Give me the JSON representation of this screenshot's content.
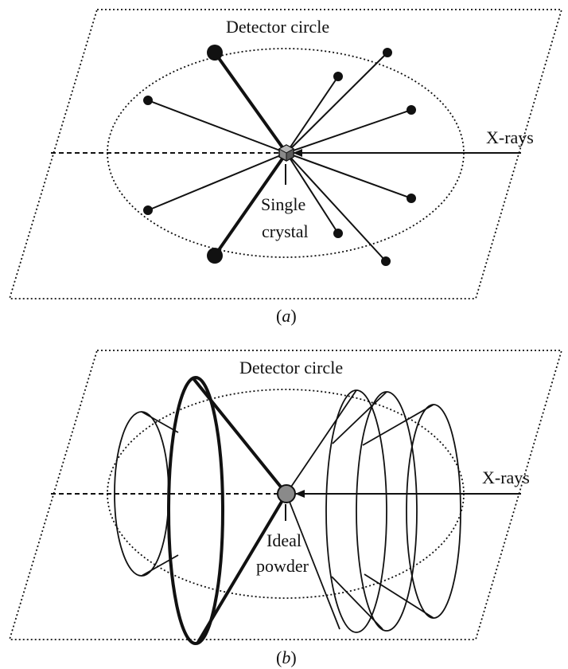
{
  "panel_a": {
    "detector_label": "Detector circle",
    "xray_label": "X-rays",
    "crystal_label_line1": "Single",
    "crystal_label_line2": "crystal",
    "caption_open": "(",
    "caption_letter": "a",
    "caption_close": ")"
  },
  "panel_b": {
    "detector_label": "Detector circle",
    "xray_label": "X-rays",
    "powder_label_line1": "Ideal",
    "powder_label_line2": "powder",
    "caption_open": "(",
    "caption_letter": "b",
    "caption_close": ")"
  },
  "colors": {
    "ink": "#111111",
    "sample_fill": "#8a8a8a",
    "crystal_face_light": "#b8b8b8",
    "crystal_face_dark": "#5a5a5a"
  }
}
